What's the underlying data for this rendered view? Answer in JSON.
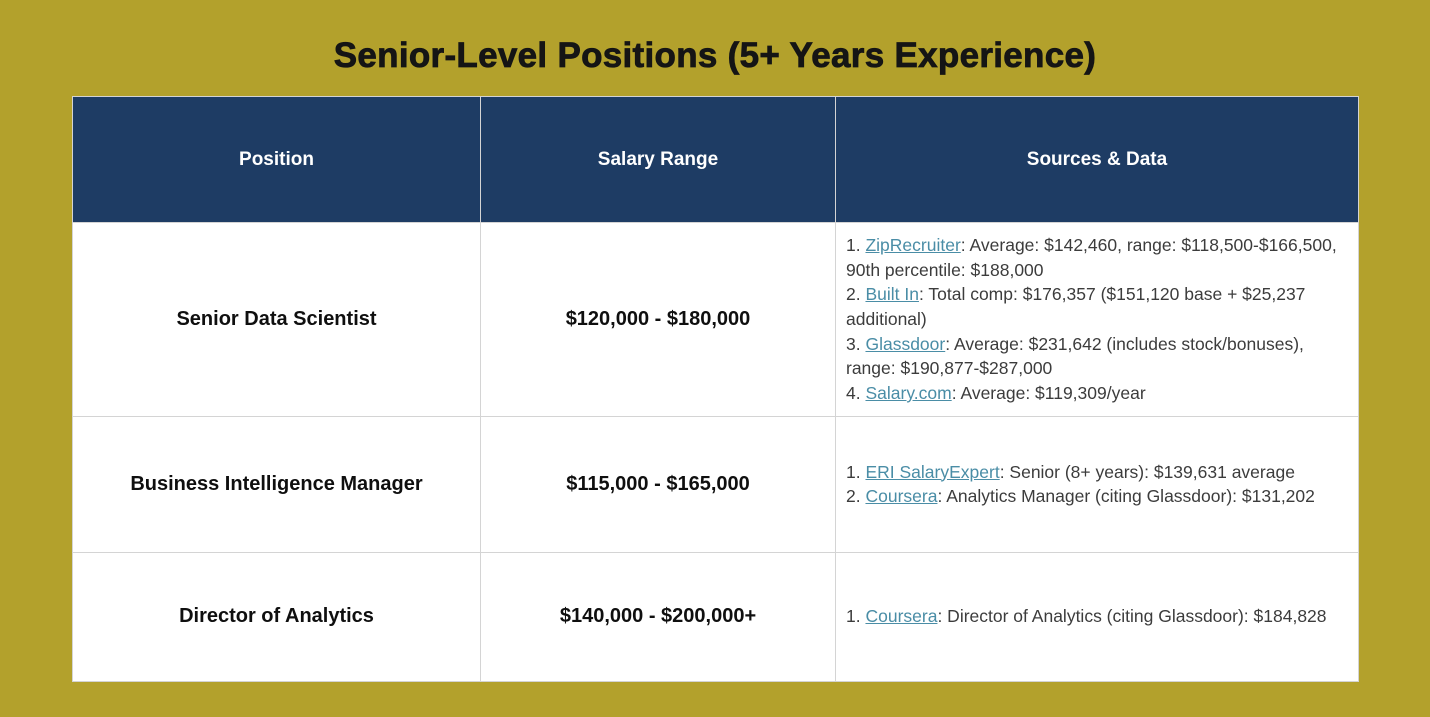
{
  "page": {
    "title": "Senior-Level Positions (5+ Years Experience)",
    "background_color": "#b3a12c"
  },
  "table": {
    "header": {
      "background_color": "#1e3c64",
      "text_color": "#ffffff",
      "columns": [
        "Position",
        "Salary Range",
        "Sources & Data"
      ]
    },
    "link_color": "#4a8da6",
    "rows": [
      {
        "position": "Senior Data Scientist",
        "salary_range": "$120,000 - $180,000",
        "sources": [
          {
            "number": "1.",
            "link": "ZipRecruiter",
            "text": ": Average: $142,460, range: $118,500-$166,500, 90th percentile: $188,000"
          },
          {
            "number": "2.",
            "link": "Built In",
            "text": ": Total comp: $176,357 ($151,120 base + $25,237 additional)"
          },
          {
            "number": "3.",
            "link": "Glassdoor",
            "text": ": Average: $231,642 (includes stock/bonuses), range: $190,877-$287,000"
          },
          {
            "number": "4.",
            "link": "Salary.com",
            "text": ": Average: $119,309/year"
          }
        ]
      },
      {
        "position": "Business Intelligence Manager",
        "salary_range": "$115,000 - $165,000",
        "sources": [
          {
            "number": "1.",
            "link": "ERI SalaryExpert",
            "text": ": Senior (8+ years): $139,631 average"
          },
          {
            "number": "2.",
            "link": "Coursera",
            "text": ": Analytics Manager (citing Glassdoor): $131,202"
          }
        ]
      },
      {
        "position": "Director of Analytics",
        "salary_range": "$140,000 - $200,000+",
        "sources": [
          {
            "number": "1.",
            "link": "Coursera",
            "text": ": Director of Analytics (citing Glassdoor): $184,828"
          }
        ]
      }
    ]
  }
}
